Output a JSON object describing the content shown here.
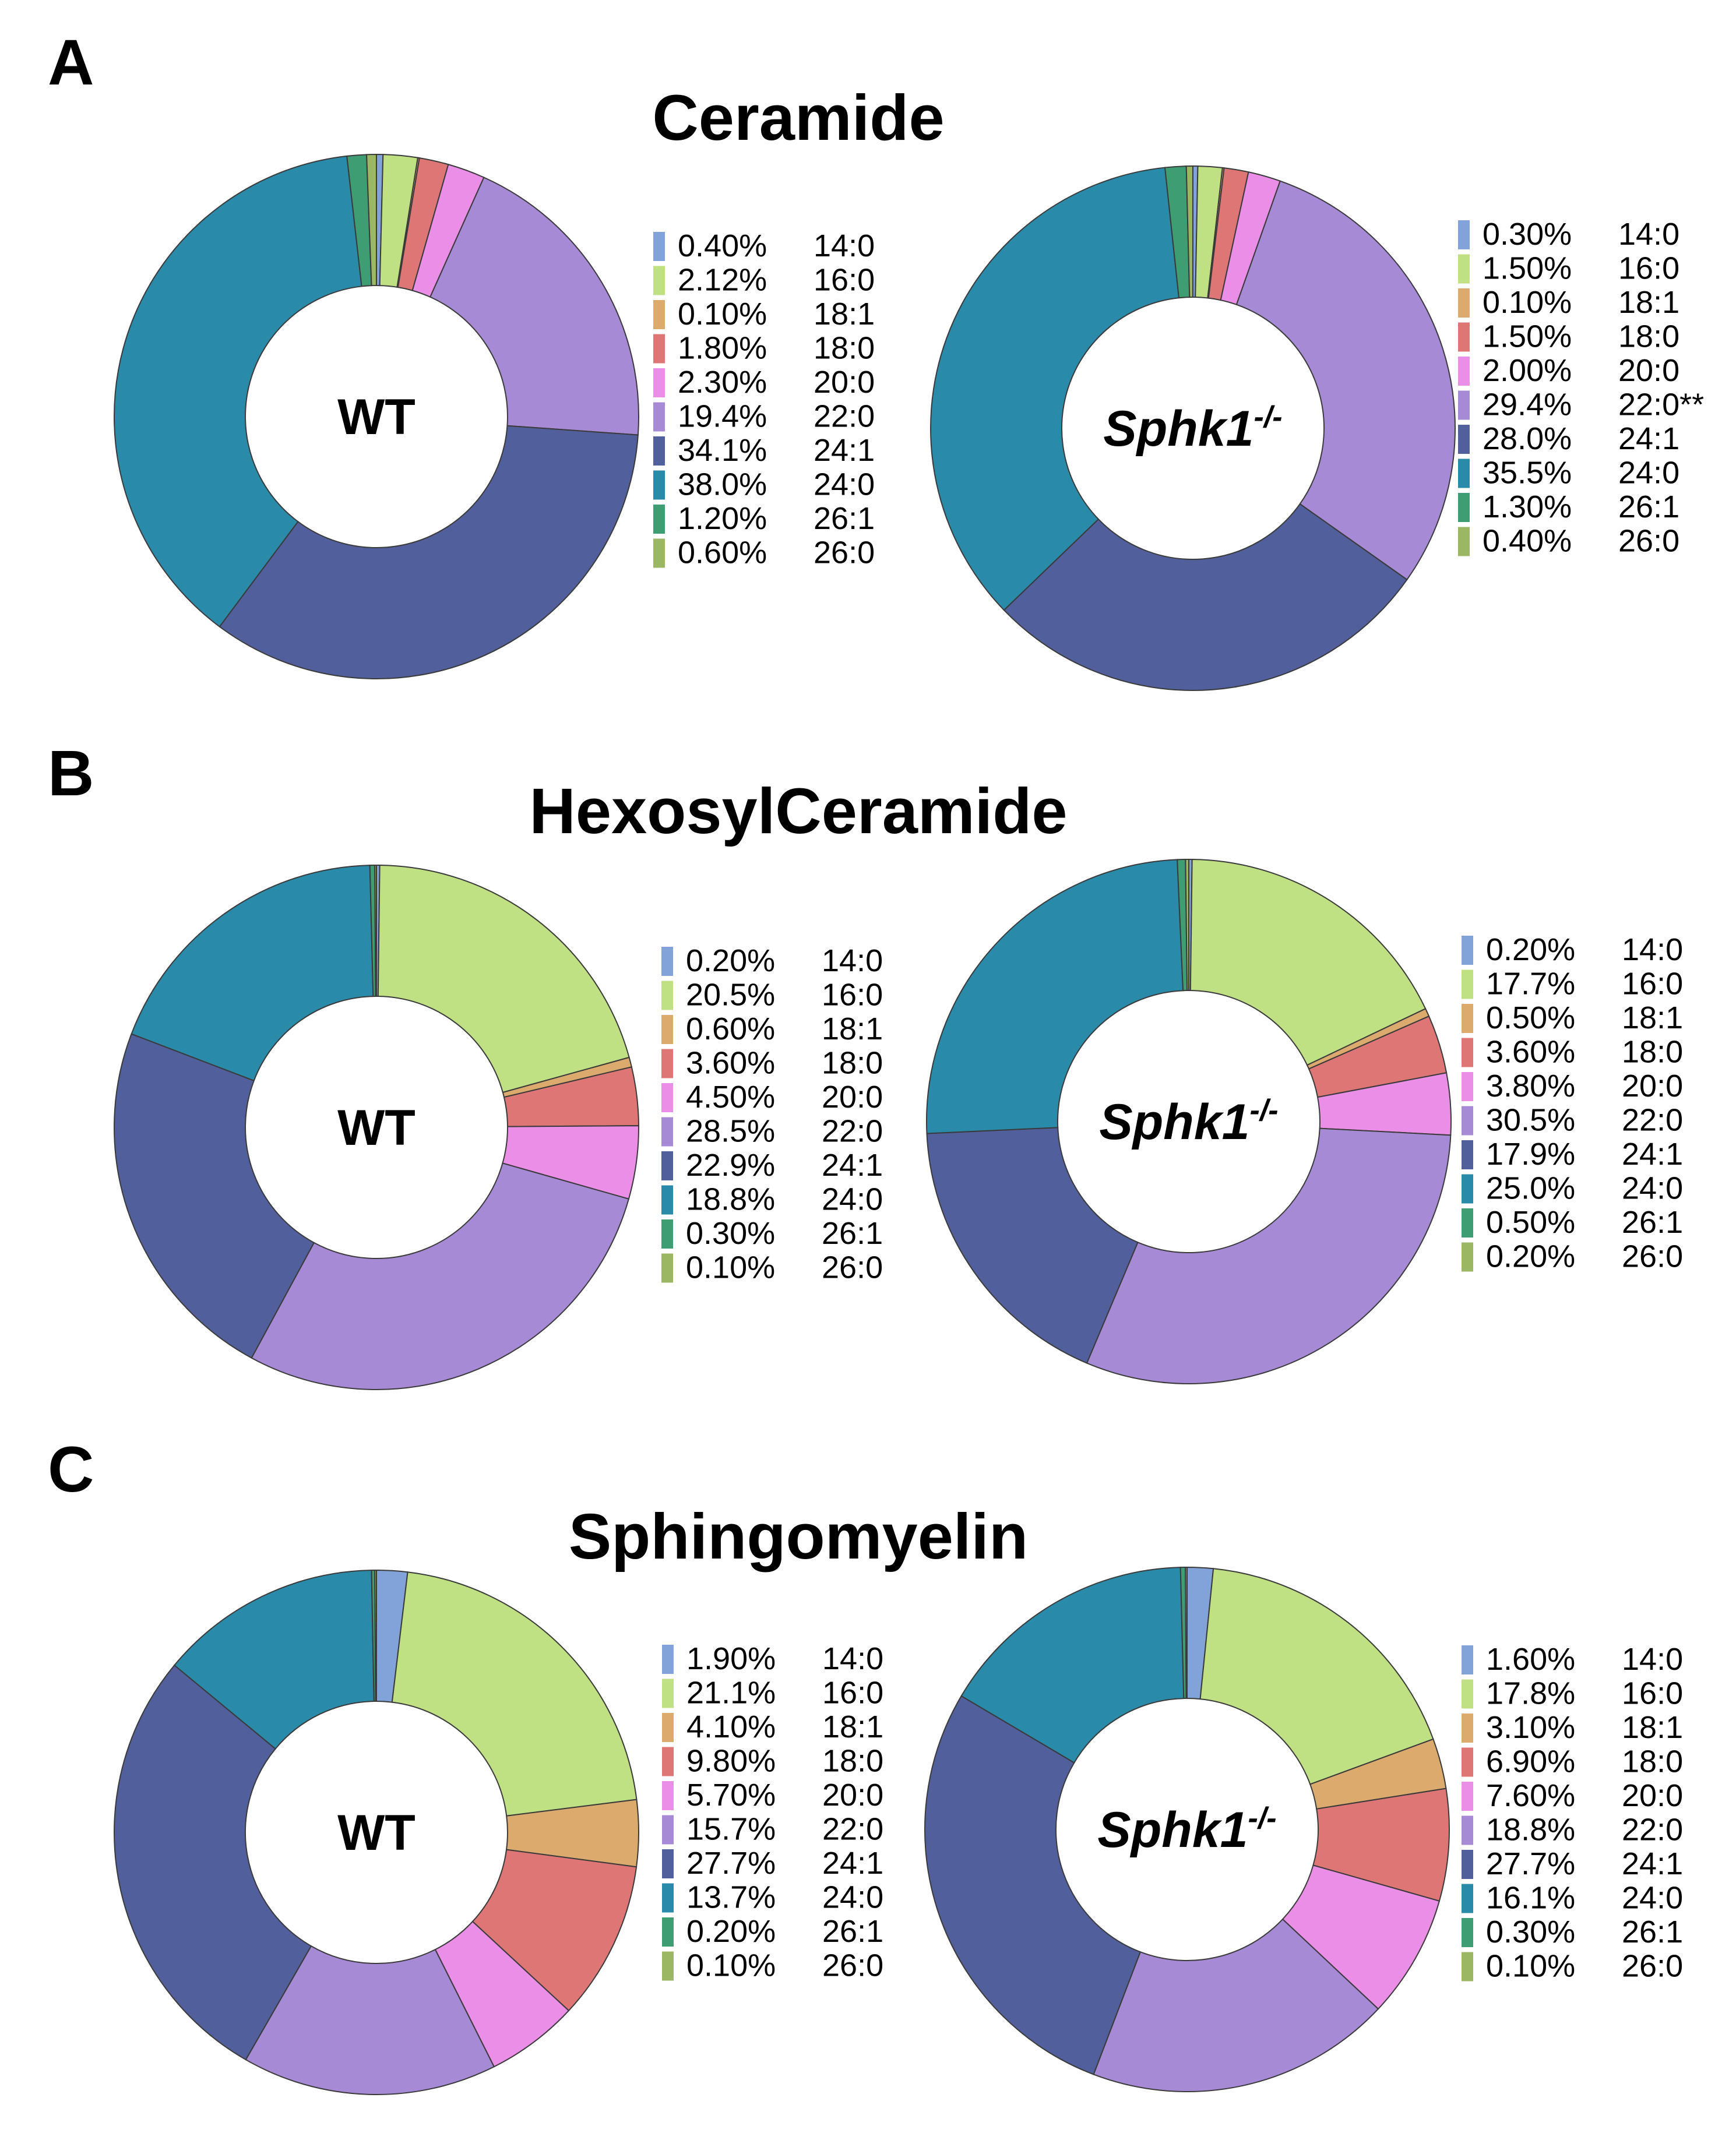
{
  "colors": {
    "14:0": "#82a3d9",
    "16:0": "#bfe083",
    "18:1": "#dcaa6c",
    "18:0": "#de7676",
    "20:0": "#eb8ee8",
    "22:0": "#a68ad6",
    "24:1": "#515f9c",
    "24:0": "#2a8aaa",
    "26:1": "#3f9d73",
    "26:0": "#9cb764"
  },
  "chart_data": [
    {
      "type": "pie",
      "panel": "A",
      "title": "Ceramide",
      "center_label": "WT",
      "categories": [
        "14:0",
        "16:0",
        "18:1",
        "18:0",
        "20:0",
        "22:0",
        "24:1",
        "24:0",
        "26:1",
        "26:0"
      ],
      "values": [
        0.4,
        2.12,
        0.1,
        1.8,
        2.3,
        19.4,
        34.1,
        38.0,
        1.2,
        0.6
      ],
      "value_labels": [
        "0.40%",
        "2.12%",
        "0.10%",
        "1.80%",
        "2.30%",
        "19.4%",
        "34.1%",
        "38.0%",
        "1.20%",
        "0.60%"
      ],
      "legend_suffix": [
        "",
        "",
        "",
        "",
        "",
        "",
        "",
        "",
        "",
        ""
      ]
    },
    {
      "type": "pie",
      "panel": "A",
      "title": "Ceramide",
      "center_label": "Sphk1",
      "center_superscript": "-/-",
      "categories": [
        "14:0",
        "16:0",
        "18:1",
        "18:0",
        "20:0",
        "22:0",
        "24:1",
        "24:0",
        "26:1",
        "26:0"
      ],
      "values": [
        0.3,
        1.5,
        0.1,
        1.5,
        2.0,
        29.4,
        28.0,
        35.5,
        1.3,
        0.4
      ],
      "value_labels": [
        "0.30%",
        "1.50%",
        "0.10%",
        "1.50%",
        "2.00%",
        "29.4%",
        "28.0%",
        "35.5%",
        "1.30%",
        "0.40%"
      ],
      "legend_suffix": [
        "",
        "",
        "",
        "",
        "",
        "**",
        "",
        "",
        "",
        ""
      ]
    },
    {
      "type": "pie",
      "panel": "B",
      "title": "HexosylCeramide",
      "center_label": "WT",
      "categories": [
        "14:0",
        "16:0",
        "18:1",
        "18:0",
        "20:0",
        "22:0",
        "24:1",
        "24:0",
        "26:1",
        "26:0"
      ],
      "values": [
        0.2,
        20.5,
        0.6,
        3.6,
        4.5,
        28.5,
        22.9,
        18.8,
        0.3,
        0.1
      ],
      "value_labels": [
        "0.20%",
        "20.5%",
        "0.60%",
        "3.60%",
        "4.50%",
        "28.5%",
        "22.9%",
        "18.8%",
        "0.30%",
        "0.10%"
      ],
      "legend_suffix": [
        "",
        "",
        "",
        "",
        "",
        "",
        "",
        "",
        "",
        ""
      ]
    },
    {
      "type": "pie",
      "panel": "B",
      "title": "HexosylCeramide",
      "center_label": "Sphk1",
      "center_superscript": "-/-",
      "categories": [
        "14:0",
        "16:0",
        "18:1",
        "18:0",
        "20:0",
        "22:0",
        "24:1",
        "24:0",
        "26:1",
        "26:0"
      ],
      "values": [
        0.2,
        17.7,
        0.5,
        3.6,
        3.8,
        30.5,
        17.9,
        25.0,
        0.5,
        0.2
      ],
      "value_labels": [
        "0.20%",
        "17.7%",
        "0.50%",
        "3.60%",
        "3.80%",
        "30.5%",
        "17.9%",
        "25.0%",
        "0.50%",
        "0.20%"
      ],
      "legend_suffix": [
        "",
        "",
        "",
        "",
        "",
        "",
        "",
        "",
        "",
        ""
      ]
    },
    {
      "type": "pie",
      "panel": "C",
      "title": "Sphingomyelin",
      "center_label": "WT",
      "categories": [
        "14:0",
        "16:0",
        "18:1",
        "18:0",
        "20:0",
        "22:0",
        "24:1",
        "24:0",
        "26:1",
        "26:0"
      ],
      "values": [
        1.9,
        21.1,
        4.1,
        9.8,
        5.7,
        15.7,
        27.7,
        13.7,
        0.2,
        0.1
      ],
      "value_labels": [
        "1.90%",
        "21.1%",
        "4.10%",
        "9.80%",
        "5.70%",
        "15.7%",
        "27.7%",
        "13.7%",
        "0.20%",
        "0.10%"
      ],
      "legend_suffix": [
        "",
        "",
        "",
        "",
        "",
        "",
        "",
        "",
        "",
        ""
      ]
    },
    {
      "type": "pie",
      "panel": "C",
      "title": "Sphingomyelin",
      "center_label": "Sphk1",
      "center_superscript": "-/-",
      "categories": [
        "14:0",
        "16:0",
        "18:1",
        "18:0",
        "20:0",
        "22:0",
        "24:1",
        "24:0",
        "26:1",
        "26:0"
      ],
      "values": [
        1.6,
        17.8,
        3.1,
        6.9,
        7.6,
        18.8,
        27.7,
        16.1,
        0.3,
        0.1
      ],
      "value_labels": [
        "1.60%",
        "17.8%",
        "3.10%",
        "6.90%",
        "7.60%",
        "18.8%",
        "27.7%",
        "16.1%",
        "0.30%",
        "0.10%"
      ],
      "legend_suffix": [
        "",
        "",
        "",
        "",
        "",
        "",
        "",
        "",
        "",
        ""
      ]
    }
  ]
}
